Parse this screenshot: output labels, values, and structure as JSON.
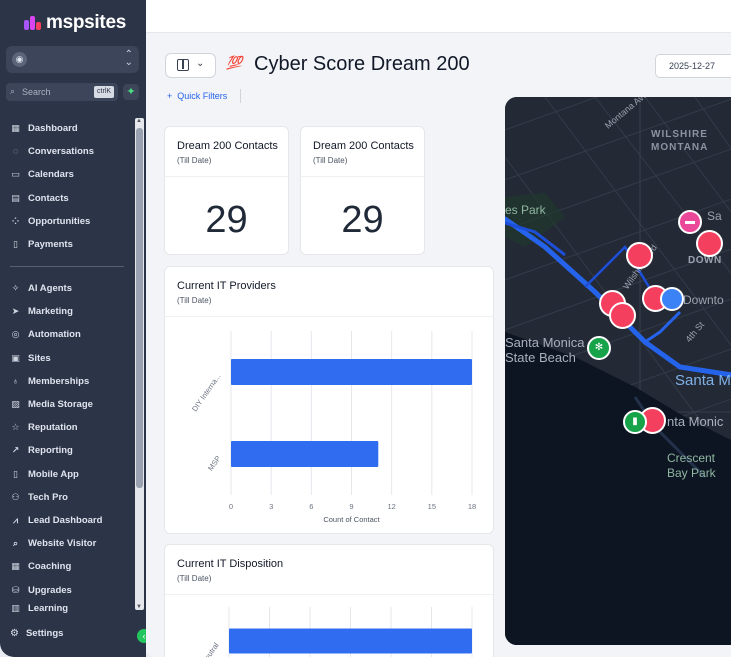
{
  "brand": {
    "name": "mspsites"
  },
  "sidebar": {
    "account_initial": "◉",
    "search": {
      "placeholder": "Search",
      "shortcut": "ctrlK"
    },
    "items_primary": [
      {
        "label": "Dashboard",
        "icon": "grid-icon"
      },
      {
        "label": "Conversations",
        "icon": "chat-icon"
      },
      {
        "label": "Calendars",
        "icon": "calendar-icon"
      },
      {
        "label": "Contacts",
        "icon": "contacts-icon"
      },
      {
        "label": "Opportunities",
        "icon": "funnel-icon"
      },
      {
        "label": "Payments",
        "icon": "payments-icon"
      }
    ],
    "items_secondary": [
      {
        "label": "AI Agents",
        "icon": "sparkle-icon"
      },
      {
        "label": "Marketing",
        "icon": "send-icon"
      },
      {
        "label": "Automation",
        "icon": "automation-icon"
      },
      {
        "label": "Sites",
        "icon": "sites-icon"
      },
      {
        "label": "Memberships",
        "icon": "award-icon"
      },
      {
        "label": "Media Storage",
        "icon": "image-icon"
      },
      {
        "label": "Reputation",
        "icon": "star-icon"
      },
      {
        "label": "Reporting",
        "icon": "trend-icon"
      },
      {
        "label": "Mobile App",
        "icon": "mobile-icon"
      },
      {
        "label": "Tech Pro",
        "icon": "users-icon"
      },
      {
        "label": "Lead Dashboard",
        "icon": "chart-icon"
      },
      {
        "label": "Website Visitor",
        "icon": "search-icon"
      },
      {
        "label": "Coaching",
        "icon": "calendar-grid-icon"
      },
      {
        "label": "Upgrades",
        "icon": "basket-icon"
      },
      {
        "label": "Learning",
        "icon": "book-icon"
      }
    ],
    "settings_label": "Settings"
  },
  "header": {
    "emoji": "💯",
    "title": "Cyber Score Dream 200",
    "date": "2025-12-27",
    "quick_filters": "Quick Filters"
  },
  "stat_cards": [
    {
      "title": "Dream 200 Contacts",
      "subtitle": "(Till Date)",
      "value": "29"
    },
    {
      "title": "Dream 200 Contacts",
      "subtitle": "(Till Date)",
      "value": "29"
    }
  ],
  "charts": [
    {
      "title": "Current IT Providers",
      "subtitle": "(Till Date)",
      "chart_data": {
        "type": "bar",
        "orientation": "horizontal",
        "categories": [
          "DIY Interna...",
          "MSP"
        ],
        "values": [
          18,
          11
        ],
        "xlabel": "Count of Contact",
        "xticks": [
          0,
          3,
          6,
          9,
          12,
          15,
          18
        ],
        "xlim": [
          0,
          18
        ],
        "grid": true,
        "bar_color": "#2f6cf0"
      }
    },
    {
      "title": "Current IT Disposition",
      "subtitle": "(Till Date)",
      "chart_data": {
        "type": "bar",
        "orientation": "horizontal",
        "categories": [
          "Neutral"
        ],
        "values": [
          18
        ],
        "xlim": [
          0,
          18
        ],
        "grid": true,
        "bar_color": "#2f6cf0"
      }
    }
  ],
  "map": {
    "labels": [
      "WILSHIRE",
      "MONTANA",
      "es Park",
      "Sa",
      "DOWN",
      "Downto",
      "4th St",
      "Montana Ave",
      "Santa Monica",
      "State Beach",
      "Santa M",
      "nta Monic",
      "Crescent",
      "Bay Park",
      "Wilshire Blvd"
    ],
    "pin_count": 8
  },
  "colors": {
    "accent": "#2563eb",
    "sidebar": "#2c3447",
    "pin": "#f43f5e",
    "bar": "#2f6cf0"
  }
}
